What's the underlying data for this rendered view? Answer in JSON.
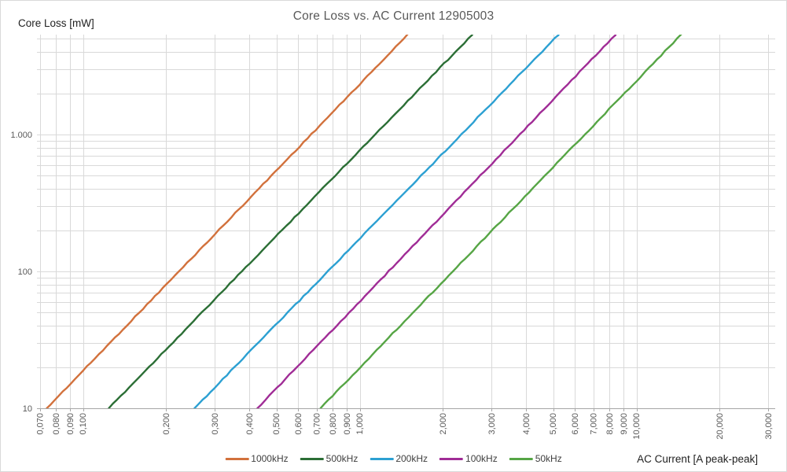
{
  "chart_data": {
    "type": "line",
    "title": "Core Loss vs. AC Current 12905003",
    "xlabel": "AC Current [A peak-peak]",
    "ylabel": "Core Loss [mW]",
    "x_scale": "log",
    "y_scale": "log",
    "xlim": [
      0.068,
      31.5
    ],
    "ylim": [
      10,
      5370
    ],
    "grid": "major-and-minor",
    "legend_position": "bottom-center",
    "x_ticks": [
      {
        "value": 0.07,
        "label": "0,070"
      },
      {
        "value": 0.08,
        "label": "0,080"
      },
      {
        "value": 0.09,
        "label": "0,090"
      },
      {
        "value": 0.1,
        "label": "0,100"
      },
      {
        "value": 0.2,
        "label": "0,200"
      },
      {
        "value": 0.3,
        "label": "0,300"
      },
      {
        "value": 0.4,
        "label": "0,400"
      },
      {
        "value": 0.5,
        "label": "0,500"
      },
      {
        "value": 0.6,
        "label": "0,600"
      },
      {
        "value": 0.7,
        "label": "0,700"
      },
      {
        "value": 0.8,
        "label": "0,800"
      },
      {
        "value": 0.9,
        "label": "0,900"
      },
      {
        "value": 1.0,
        "label": "1,000"
      },
      {
        "value": 2.0,
        "label": "2,000"
      },
      {
        "value": 3.0,
        "label": "3,000"
      },
      {
        "value": 4.0,
        "label": "4,000"
      },
      {
        "value": 5.0,
        "label": "5,000"
      },
      {
        "value": 6.0,
        "label": "6,000"
      },
      {
        "value": 7.0,
        "label": "7,000"
      },
      {
        "value": 8.0,
        "label": "8,000"
      },
      {
        "value": 9.0,
        "label": "9,000"
      },
      {
        "value": 10.0,
        "label": "10,000"
      },
      {
        "value": 20.0,
        "label": "20,000"
      },
      {
        "value": 30.0,
        "label": "30,000"
      }
    ],
    "y_ticks": [
      {
        "value": 10,
        "label": "10"
      },
      {
        "value": 100,
        "label": "100"
      },
      {
        "value": 1000,
        "label": "1.000"
      }
    ],
    "series": [
      {
        "name": "1000kHz",
        "color": "#D2713C",
        "power_law": {
          "i_at_10mW": 0.074,
          "exponent": 2.09
        },
        "points": [
          [
            0.074,
            10
          ],
          [
            1.49,
            5370
          ]
        ]
      },
      {
        "name": "500kHz",
        "color": "#2B6E35",
        "power_law": {
          "i_at_10mW": 0.124,
          "exponent": 2.08
        },
        "points": [
          [
            0.124,
            10
          ],
          [
            2.55,
            5370
          ]
        ]
      },
      {
        "name": "200kHz",
        "color": "#2CA0D2",
        "power_law": {
          "i_at_10mW": 0.253,
          "exponent": 2.08
        },
        "points": [
          [
            0.253,
            10
          ],
          [
            5.23,
            5370
          ]
        ]
      },
      {
        "name": "100kHz",
        "color": "#A02C96",
        "power_law": {
          "i_at_10mW": 0.427,
          "exponent": 2.11
        },
        "points": [
          [
            0.427,
            10
          ],
          [
            8.4,
            5370
          ]
        ]
      },
      {
        "name": "50kHz",
        "color": "#56A545",
        "power_law": {
          "i_at_10mW": 0.722,
          "exponent": 2.1
        },
        "points": [
          [
            0.722,
            10
          ],
          [
            14.5,
            5370
          ]
        ]
      }
    ],
    "colors": {
      "grid": "#D9D9D9",
      "axis_line": "#A6A6A6",
      "tick_label": "#595959",
      "title": "#595959",
      "axis_title": "#1F1F1F"
    }
  }
}
